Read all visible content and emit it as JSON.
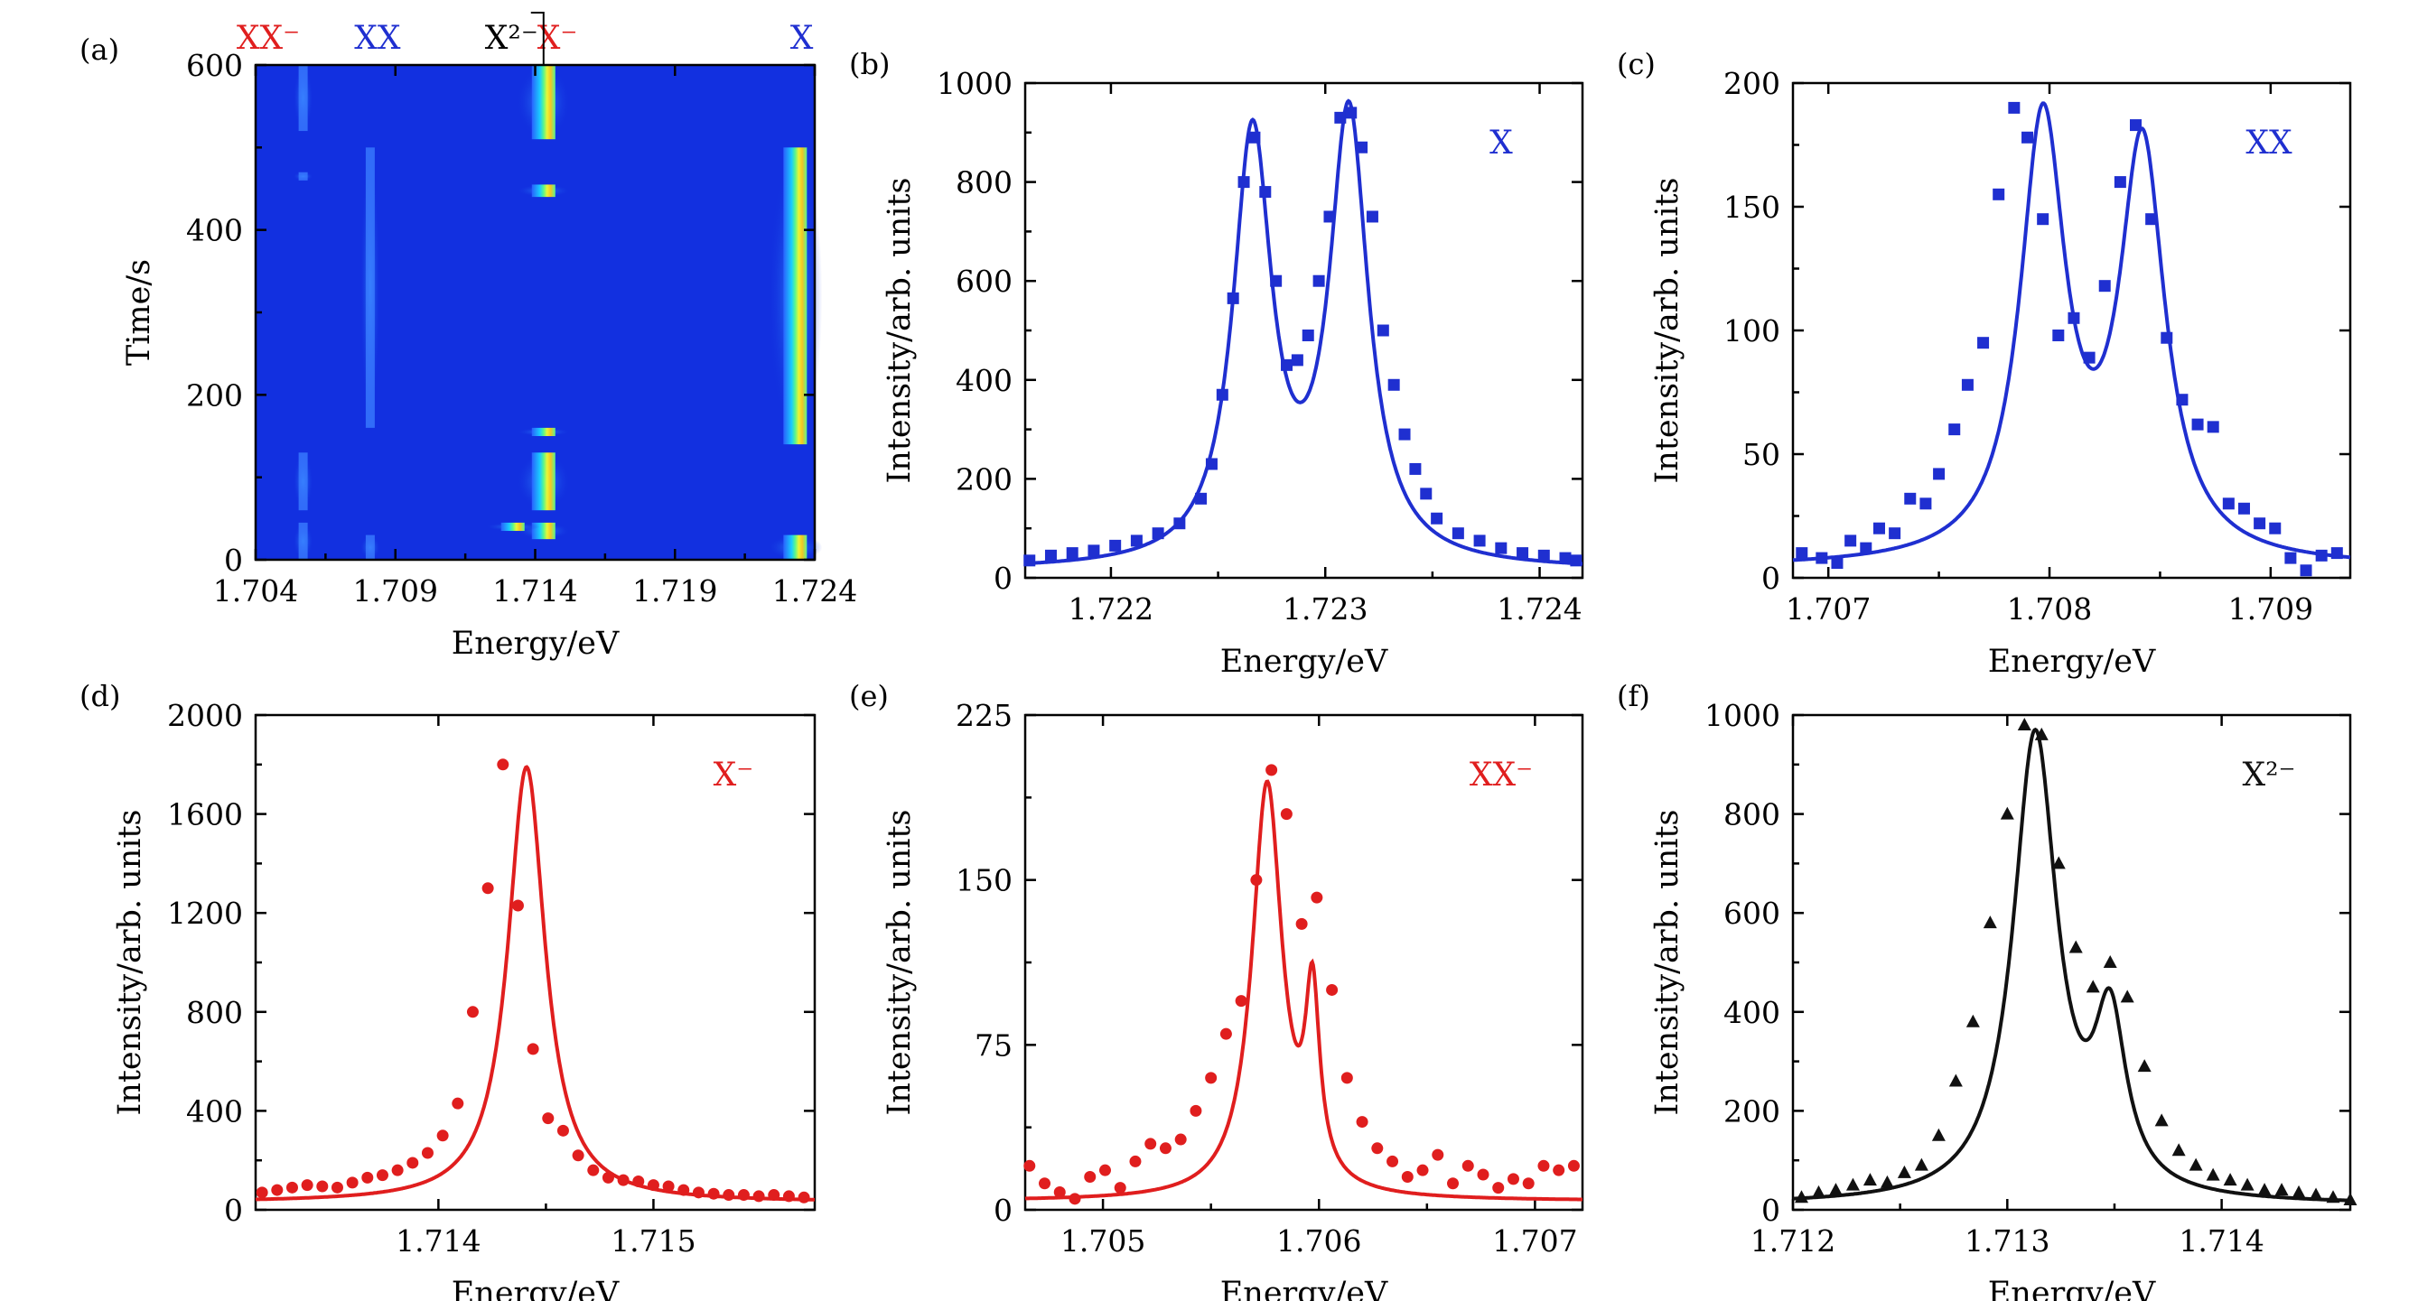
{
  "figure": {
    "background": "#ffffff"
  },
  "colors": {
    "blue": "#1f2fd0",
    "red": "#e01e1e",
    "black": "#111111",
    "map_bg": "#1230e0"
  },
  "chart_data": [
    {
      "type": "heatmap",
      "panel_label": "(a)",
      "xlabel": "Energy/eV",
      "ylabel": "Time/s",
      "xlim": [
        1.704,
        1.724
      ],
      "ylim": [
        0,
        600
      ],
      "xticks": [
        1.704,
        1.709,
        1.714,
        1.719,
        1.724
      ],
      "xtick_labels": [
        "1.704",
        "1.709",
        "1.714",
        "1.719",
        "1.724"
      ],
      "yticks": [
        0,
        200,
        400,
        600
      ],
      "ytick_labels": [
        "0",
        "200",
        "400",
        "600"
      ],
      "colormap": "jet",
      "top_labels": [
        {
          "text": "XX⁻",
          "color": "#e01e1e"
        },
        {
          "text": "XX",
          "color": "#1f2fd0"
        },
        {
          "text": "X²⁻",
          "color": "#000000"
        },
        {
          "text": "X⁻",
          "color": "#e01e1e"
        },
        {
          "text": "X",
          "color": "#1f2fd0"
        }
      ],
      "lines": [
        {
          "energy": 1.7057,
          "intensity": 0.35,
          "segments": [
            [
              0,
              45
            ],
            [
              60,
              130
            ],
            [
              460,
              470
            ],
            [
              520,
              600
            ]
          ]
        },
        {
          "energy": 1.7081,
          "intensity": 0.4,
          "segments": [
            [
              0,
              30
            ],
            [
              160,
              500
            ]
          ]
        },
        {
          "energy": 1.7143,
          "intensity": 1.0,
          "segments": [
            [
              25,
              45
            ],
            [
              60,
              130
            ],
            [
              150,
              160
            ],
            [
              440,
              455
            ],
            [
              510,
              600
            ]
          ]
        },
        {
          "energy": 1.7132,
          "intensity": 0.9,
          "segments": [
            [
              35,
              45
            ]
          ]
        },
        {
          "energy": 1.7233,
          "intensity": 0.85,
          "segments": [
            [
              0,
              30
            ],
            [
              140,
              500
            ]
          ]
        }
      ]
    },
    {
      "type": "scatter",
      "panel_label": "(b)",
      "peak_label": "X",
      "color": "#1f2fd0",
      "marker": "square",
      "xlabel": "Energy/eV",
      "ylabel": "Intensity/arb. units",
      "xlim": [
        1.7216,
        1.7242
      ],
      "ylim": [
        0,
        1000
      ],
      "xticks": [
        1.722,
        1.723,
        1.724
      ],
      "xtick_labels": [
        "1.722",
        "1.723",
        "1.724"
      ],
      "yticks": [
        0,
        200,
        400,
        600,
        800,
        1000
      ],
      "ytick_labels": [
        "0",
        "200",
        "400",
        "600",
        "800",
        "1000"
      ],
      "fit": {
        "baseline": 15,
        "peaks": [
          {
            "center": 1.72266,
            "amp": 860,
            "gamma": 0.00011
          },
          {
            "center": 1.72311,
            "amp": 900,
            "gamma": 0.00011
          }
        ]
      },
      "points": {
        "x": [
          1.72162,
          1.72172,
          1.72182,
          1.72192,
          1.72202,
          1.72212,
          1.72222,
          1.72232,
          1.72242,
          1.72247,
          1.72252,
          1.72257,
          1.72262,
          1.72267,
          1.72272,
          1.72277,
          1.72282,
          1.72287,
          1.72292,
          1.72297,
          1.72302,
          1.72307,
          1.72312,
          1.72317,
          1.72322,
          1.72327,
          1.72332,
          1.72337,
          1.72342,
          1.72347,
          1.72352,
          1.72362,
          1.72372,
          1.72382,
          1.72392,
          1.72402,
          1.72412,
          1.72417
        ],
        "y": [
          35,
          45,
          50,
          55,
          65,
          75,
          90,
          110,
          160,
          230,
          370,
          565,
          800,
          890,
          780,
          600,
          430,
          440,
          490,
          600,
          730,
          930,
          940,
          870,
          730,
          500,
          390,
          290,
          220,
          170,
          120,
          90,
          75,
          60,
          50,
          45,
          40,
          35
        ]
      }
    },
    {
      "type": "scatter",
      "panel_label": "(c)",
      "peak_label": "XX",
      "color": "#1f2fd0",
      "marker": "square",
      "xlabel": "Energy/eV",
      "ylabel": "Intensity/arb. units",
      "xlim": [
        1.70684,
        1.70936
      ],
      "ylim": [
        0,
        200
      ],
      "xticks": [
        1.707,
        1.708,
        1.709
      ],
      "xtick_labels": [
        "1.707",
        "1.708",
        "1.709"
      ],
      "yticks": [
        0,
        50,
        100,
        150,
        200
      ],
      "ytick_labels": [
        "0",
        "50",
        "100",
        "150",
        "200"
      ],
      "fit": {
        "baseline": 4,
        "peaks": [
          {
            "center": 1.70797,
            "amp": 176,
            "gamma": 0.000125
          },
          {
            "center": 1.70842,
            "amp": 165,
            "gamma": 0.000125
          }
        ]
      },
      "points": {
        "x": [
          1.70688,
          1.70697,
          1.70704,
          1.7071,
          1.70717,
          1.70723,
          1.7073,
          1.70737,
          1.70744,
          1.7075,
          1.70757,
          1.70763,
          1.7077,
          1.70777,
          1.70784,
          1.7079,
          1.70797,
          1.70804,
          1.70811,
          1.70818,
          1.70825,
          1.70832,
          1.70839,
          1.70846,
          1.70853,
          1.7086,
          1.70867,
          1.70874,
          1.70881,
          1.70888,
          1.70895,
          1.70902,
          1.70909,
          1.70916,
          1.70923,
          1.7093
        ],
        "y": [
          10,
          8,
          6,
          15,
          12,
          20,
          18,
          32,
          30,
          42,
          60,
          78,
          95,
          155,
          190,
          178,
          145,
          98,
          105,
          89,
          118,
          160,
          183,
          145,
          97,
          72,
          62,
          61,
          30,
          28,
          22,
          20,
          8,
          3,
          9,
          10
        ]
      }
    },
    {
      "type": "scatter",
      "panel_label": "(d)",
      "peak_label": "X⁻",
      "color": "#e01e1e",
      "marker": "circle",
      "xlabel": "Energy/eV",
      "ylabel": "Intensity/arb. units",
      "xlim": [
        1.71315,
        1.71575
      ],
      "ylim": [
        0,
        2000
      ],
      "xticks": [
        1.714,
        1.715
      ],
      "xtick_labels": [
        "1.714",
        "1.715"
      ],
      "yticks": [
        0,
        400,
        800,
        1200,
        1600,
        2000
      ],
      "ytick_labels": [
        "0",
        "400",
        "800",
        "1200",
        "1600",
        "2000"
      ],
      "fit": {
        "baseline": 30,
        "peaks": [
          {
            "center": 1.71441,
            "amp": 1760,
            "gamma": 0.000105
          }
        ]
      },
      "points": {
        "x": [
          1.71318,
          1.71325,
          1.71332,
          1.71339,
          1.71346,
          1.71353,
          1.7136,
          1.71367,
          1.71374,
          1.71381,
          1.71388,
          1.71395,
          1.71402,
          1.71409,
          1.71416,
          1.71423,
          1.7143,
          1.71437,
          1.71444,
          1.71451,
          1.71458,
          1.71465,
          1.71472,
          1.71479,
          1.71486,
          1.71493,
          1.715,
          1.71507,
          1.71514,
          1.71521,
          1.71528,
          1.71535,
          1.71542,
          1.71549,
          1.71556,
          1.71563,
          1.7157
        ],
        "y": [
          70,
          80,
          90,
          100,
          95,
          90,
          110,
          130,
          140,
          160,
          190,
          230,
          300,
          430,
          800,
          1300,
          1800,
          1230,
          650,
          370,
          320,
          220,
          160,
          130,
          120,
          115,
          100,
          95,
          80,
          70,
          65,
          60,
          60,
          55,
          60,
          55,
          50
        ]
      }
    },
    {
      "type": "scatter",
      "panel_label": "(e)",
      "peak_label": "XX⁻",
      "color": "#e01e1e",
      "marker": "circle",
      "xlabel": "Energy/eV",
      "ylabel": "Intensity/arb. units",
      "xlim": [
        1.70464,
        1.70722
      ],
      "ylim": [
        0,
        225
      ],
      "xticks": [
        1.705,
        1.706,
        1.707
      ],
      "xtick_labels": [
        "1.705",
        "1.706",
        "1.707"
      ],
      "yticks": [
        0,
        75,
        150,
        225
      ],
      "ytick_labels": [
        "0",
        "75",
        "150",
        "225"
      ],
      "fit": {
        "baseline": 4,
        "peaks": [
          {
            "center": 1.70576,
            "amp": 188,
            "gamma": 8.5e-05
          },
          {
            "center": 1.70597,
            "amp": 82,
            "gamma": 4e-05
          }
        ]
      },
      "points": {
        "x": [
          1.70466,
          1.70473,
          1.7048,
          1.70487,
          1.70494,
          1.70501,
          1.70508,
          1.70515,
          1.70522,
          1.70529,
          1.70536,
          1.70543,
          1.7055,
          1.70557,
          1.70564,
          1.70571,
          1.70578,
          1.70585,
          1.70592,
          1.70599,
          1.70606,
          1.70613,
          1.7062,
          1.70627,
          1.70634,
          1.70641,
          1.70648,
          1.70655,
          1.70662,
          1.70669,
          1.70676,
          1.70683,
          1.7069,
          1.70697,
          1.70704,
          1.70711,
          1.70718
        ],
        "y": [
          20,
          12,
          8,
          5,
          15,
          18,
          10,
          22,
          30,
          28,
          32,
          45,
          60,
          80,
          95,
          150,
          200,
          180,
          130,
          142,
          100,
          60,
          40,
          28,
          22,
          15,
          18,
          25,
          12,
          20,
          16,
          10,
          14,
          12,
          20,
          18,
          20
        ]
      }
    },
    {
      "type": "scatter",
      "panel_label": "(f)",
      "peak_label": "X²⁻",
      "color": "#111111",
      "marker": "triangle",
      "xlabel": "Energy/eV",
      "ylabel": "Intensity/arb. units",
      "xlim": [
        1.712,
        1.7146
      ],
      "ylim": [
        0,
        1000
      ],
      "xticks": [
        1.712,
        1.713,
        1.714
      ],
      "xtick_labels": [
        "1.712",
        "1.713",
        "1.714"
      ],
      "yticks": [
        0,
        200,
        400,
        600,
        800,
        1000
      ],
      "ytick_labels": [
        "0",
        "200",
        "400",
        "600",
        "800",
        "1000"
      ],
      "fit": {
        "baseline": 10,
        "peaks": [
          {
            "center": 1.71313,
            "amp": 940,
            "gamma": 0.000125
          },
          {
            "center": 1.71348,
            "amp": 330,
            "gamma": 9e-05
          }
        ]
      },
      "points": {
        "x": [
          1.71204,
          1.71212,
          1.7122,
          1.71228,
          1.71236,
          1.71244,
          1.71252,
          1.7126,
          1.71268,
          1.71276,
          1.71284,
          1.71292,
          1.713,
          1.71308,
          1.71316,
          1.71324,
          1.71332,
          1.7134,
          1.71348,
          1.71356,
          1.71364,
          1.71372,
          1.7138,
          1.71388,
          1.71396,
          1.71404,
          1.71412,
          1.7142,
          1.71428,
          1.71436,
          1.71444,
          1.71452,
          1.7146
        ],
        "y": [
          25,
          35,
          40,
          50,
          60,
          55,
          75,
          90,
          150,
          260,
          380,
          580,
          800,
          980,
          960,
          700,
          530,
          450,
          500,
          430,
          290,
          180,
          120,
          90,
          70,
          60,
          50,
          40,
          40,
          35,
          30,
          25,
          20
        ]
      }
    }
  ]
}
